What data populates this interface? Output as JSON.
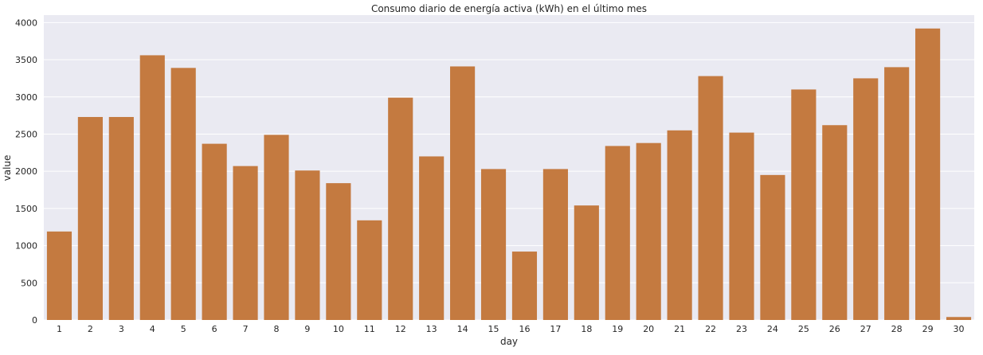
{
  "chart_data": {
    "type": "bar",
    "title": "Consumo diario de energía activa (kWh) en el último mes",
    "xlabel": "day",
    "ylabel": "value",
    "categories": [
      "1",
      "2",
      "3",
      "4",
      "5",
      "6",
      "7",
      "8",
      "9",
      "10",
      "11",
      "12",
      "13",
      "14",
      "15",
      "16",
      "17",
      "18",
      "19",
      "20",
      "21",
      "22",
      "23",
      "24",
      "25",
      "26",
      "27",
      "28",
      "29",
      "30"
    ],
    "values": [
      1190,
      2730,
      2730,
      3560,
      3390,
      2370,
      2070,
      2490,
      2010,
      1840,
      1340,
      2990,
      2200,
      3410,
      2030,
      920,
      2030,
      1540,
      2340,
      2380,
      2550,
      3280,
      2520,
      1950,
      3100,
      2620,
      3250,
      3400,
      3920,
      40
    ],
    "ylim": [
      0,
      4100
    ],
    "yticks": [
      0,
      500,
      1000,
      1500,
      2000,
      2500,
      3000,
      3500,
      4000
    ],
    "grid": true,
    "legend": "none",
    "colors": {
      "bar": "#c47a40",
      "plot_background": "#eaeaf2",
      "grid": "#ffffff"
    }
  }
}
